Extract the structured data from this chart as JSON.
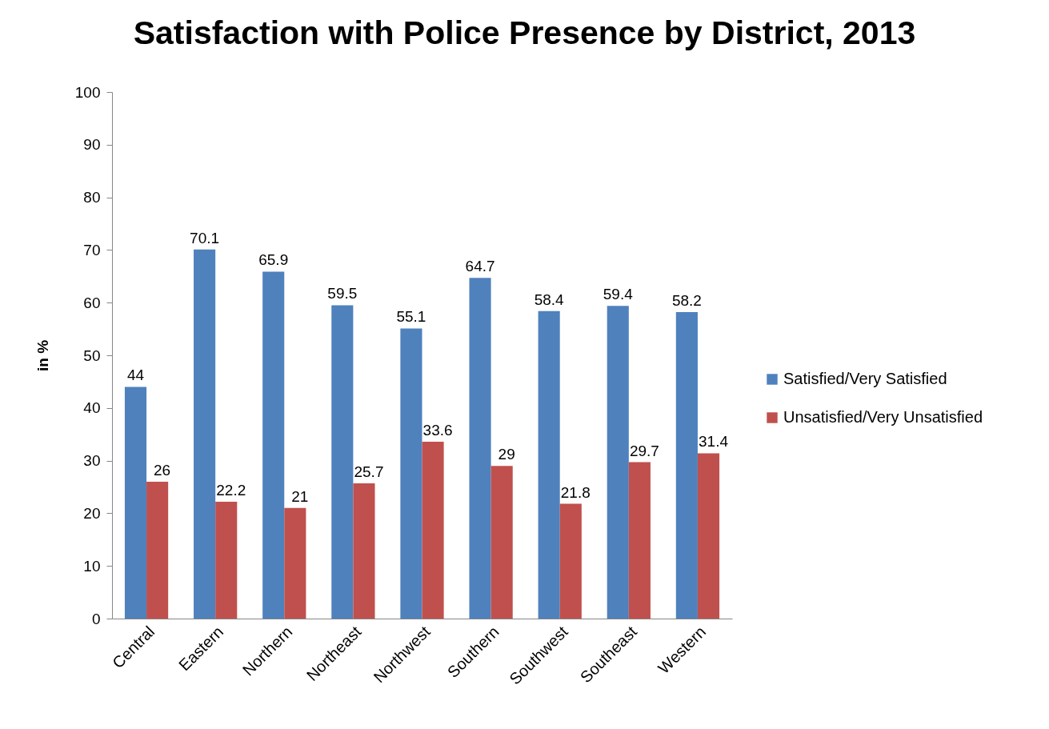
{
  "chart_data": {
    "type": "bar",
    "title": "Satisfaction with Police Presence by District, 2013",
    "ylabel": "in %",
    "categories": [
      "Central",
      "Eastern",
      "Northern",
      "Northeast",
      "Northwest",
      "Southern",
      "Southwest",
      "Southeast",
      "Western"
    ],
    "series": [
      {
        "name": "Satisfied/Very Satisfied",
        "color": "#4f81bd",
        "values": [
          44,
          70.1,
          65.9,
          59.5,
          55.1,
          64.7,
          58.4,
          59.4,
          58.2
        ]
      },
      {
        "name": "Unsatisfied/Very Unsatisfied",
        "color": "#c0504d",
        "values": [
          26,
          22.2,
          21,
          25.7,
          33.6,
          29,
          21.8,
          29.7,
          31.4
        ]
      }
    ],
    "ylim": [
      0,
      100
    ],
    "yticks": [
      0,
      10,
      20,
      30,
      40,
      50,
      60,
      70,
      80,
      90,
      100
    ],
    "grid": false,
    "legend": "right",
    "data_labels": true
  }
}
